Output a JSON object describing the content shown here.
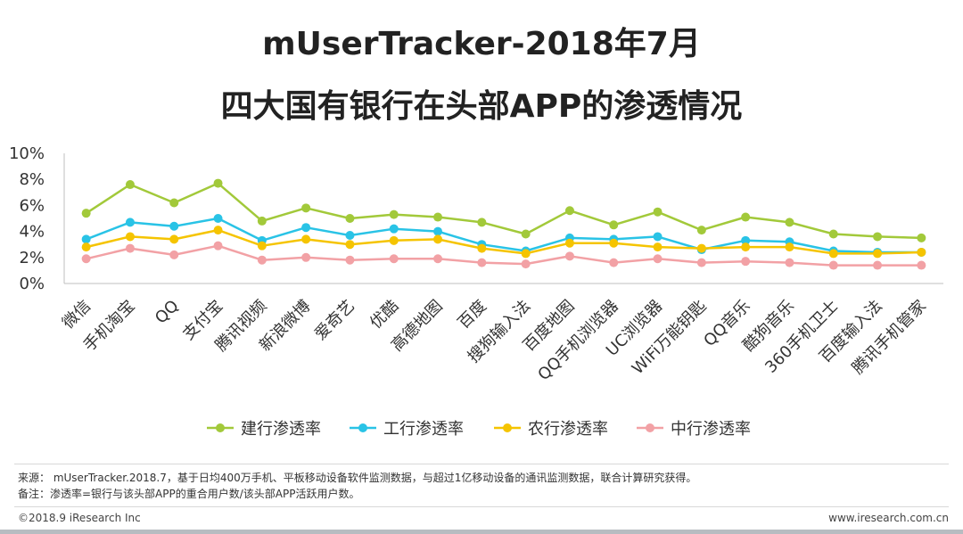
{
  "title": {
    "line1": "mUserTracker-2018年7月",
    "line2": "四大国有银行在头部APP的渗透情况"
  },
  "chart_data": {
    "type": "line",
    "title": "mUserTracker-2018年7月 四大国有银行在头部APP的渗透情况",
    "xlabel": "",
    "ylabel": "",
    "ylim": [
      0,
      10
    ],
    "yticks": [
      "0%",
      "2%",
      "4%",
      "6%",
      "8%",
      "10%"
    ],
    "grid": false,
    "legend_position": "bottom",
    "categories": [
      "微信",
      "手机淘宝",
      "QQ",
      "支付宝",
      "腾讯视频",
      "新浪微博",
      "爱奇艺",
      "优酷",
      "高德地图",
      "百度",
      "搜狗输入法",
      "百度地图",
      "QQ手机浏览器",
      "UC浏览器",
      "WiFi万能钥匙",
      "QQ音乐",
      "酷狗音乐",
      "360手机卫士",
      "百度输入法",
      "腾讯手机管家"
    ],
    "series": [
      {
        "name": "建行渗透率",
        "color": "#a2c93a",
        "values": [
          5.4,
          7.6,
          6.2,
          7.7,
          4.8,
          5.8,
          5.0,
          5.3,
          5.1,
          4.7,
          3.8,
          5.6,
          4.5,
          5.5,
          4.1,
          5.1,
          4.7,
          3.8,
          3.6,
          3.5
        ]
      },
      {
        "name": "工行渗透率",
        "color": "#29c3e6",
        "values": [
          3.4,
          4.7,
          4.4,
          5.0,
          3.3,
          4.3,
          3.7,
          4.2,
          4.0,
          3.0,
          2.5,
          3.5,
          3.4,
          3.6,
          2.6,
          3.3,
          3.2,
          2.5,
          2.4,
          2.4
        ]
      },
      {
        "name": "农行渗透率",
        "color": "#f5c400",
        "values": [
          2.8,
          3.6,
          3.4,
          4.1,
          2.9,
          3.4,
          3.0,
          3.3,
          3.4,
          2.7,
          2.3,
          3.1,
          3.1,
          2.8,
          2.7,
          2.8,
          2.8,
          2.3,
          2.3,
          2.4
        ]
      },
      {
        "name": "中行渗透率",
        "color": "#f2a1a5",
        "values": [
          1.9,
          2.7,
          2.2,
          2.9,
          1.8,
          2.0,
          1.8,
          1.9,
          1.9,
          1.6,
          1.5,
          2.1,
          1.6,
          1.9,
          1.6,
          1.7,
          1.6,
          1.4,
          1.4,
          1.4
        ]
      }
    ]
  },
  "notes": {
    "source": "来源： mUserTracker.2018.7，基于日均400万手机、平板移动设备软件监测数据，与超过1亿移动设备的通讯监测数据，联合计算研究获得。",
    "remark": "备注：渗透率=银行与该头部APP的重合用户数/该头部APP活跃用户数。"
  },
  "footer": {
    "copyright": "©2018.9 iResearch Inc",
    "website": "www.iresearch.com.cn"
  }
}
